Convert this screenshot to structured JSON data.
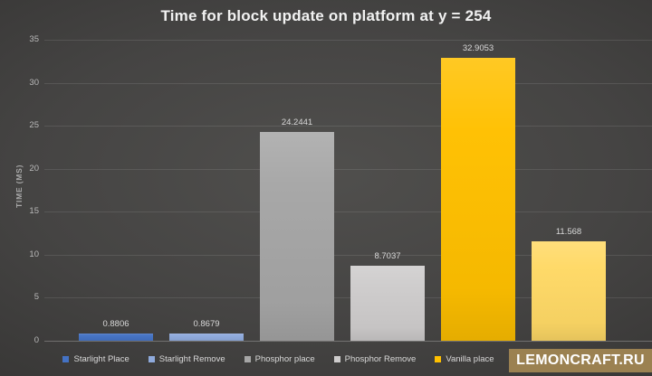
{
  "chart_data": {
    "type": "bar",
    "title": "Time for block update on platform at y = 254",
    "ylabel": "TIME (MS)",
    "xlabel": "",
    "ylim": [
      0,
      35
    ],
    "yticks": [
      0,
      5,
      10,
      15,
      20,
      25,
      30,
      35
    ],
    "grid": "horizontal",
    "legend_position": "bottom",
    "bars": [
      {
        "name": "Starlight Place",
        "value": 0.8806,
        "data_label": "0.8806",
        "color": "#4472C4"
      },
      {
        "name": "Starlight Remove",
        "value": 0.8679,
        "data_label": "0.8679",
        "color": "#8FAADC"
      },
      {
        "name": "Phosphor place",
        "value": 24.2441,
        "data_label": "24.2441",
        "color": "#A6A6A6"
      },
      {
        "name": "Phosphor Remove",
        "value": 8.7037,
        "data_label": "8.7037",
        "color": "#CECCCC"
      },
      {
        "name": "Vanilla place",
        "value": 32.9053,
        "data_label": "32.9053",
        "color": "#FFC000"
      },
      {
        "name": "",
        "value": 11.568,
        "data_label": "11.568",
        "color": "#FFD966",
        "legend_label_hidden_by_watermark": true
      }
    ]
  },
  "watermark": {
    "text": "LEMONCRAFT.RU",
    "background": "#9B8151",
    "text_color": "#FFFFFF"
  },
  "colors": {
    "title_text": "#F2F2F2",
    "tick_label": "#B9B9B9",
    "data_label": "#D9D9D9",
    "legend_label": "#D9D9D9",
    "gridline": "rgba(255,255,255,0.10)"
  }
}
